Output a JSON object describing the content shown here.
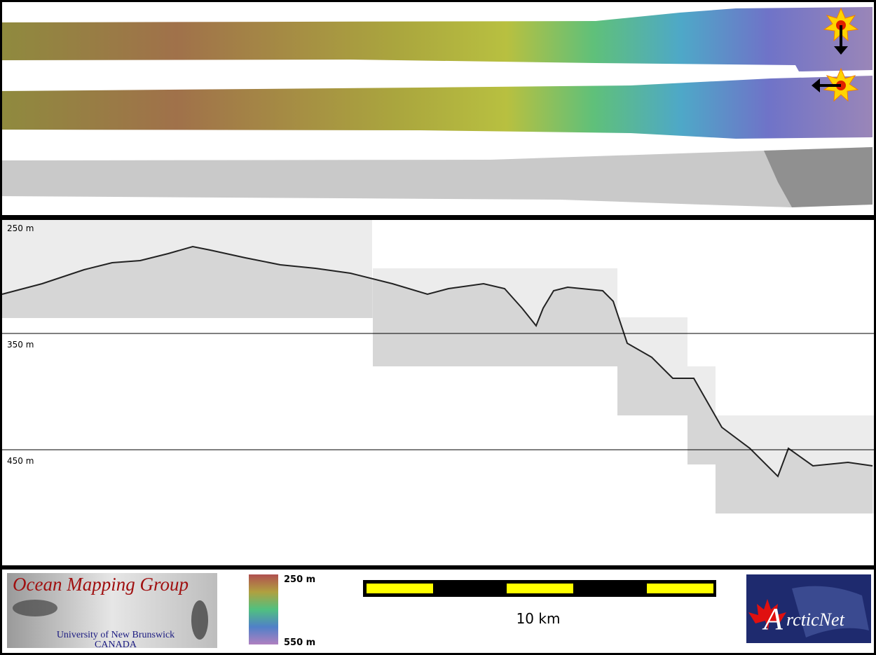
{
  "profile": {
    "depth_labels": [
      "250 m",
      "350 m",
      "450 m"
    ]
  },
  "footer": {
    "logo": {
      "title": "Ocean Mapping Group",
      "university": "University of New Brunswick",
      "country": "CANADA"
    },
    "colorbar": {
      "top_label": "250 m",
      "bottom_label": "550 m"
    },
    "scale_bar": {
      "label": "10 km"
    },
    "partner_logo": {
      "initial": "A",
      "rest": "rcticNet"
    }
  }
}
